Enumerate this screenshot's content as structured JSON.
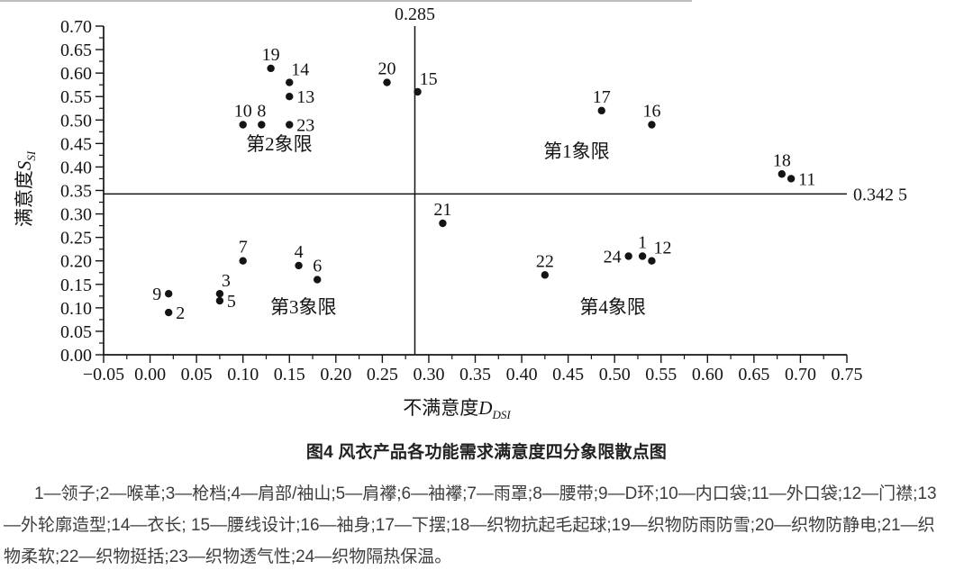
{
  "figure": {
    "caption": "图4 风衣产品各功能需求满意度四分象限散点图",
    "legend_lines": [
      "1—领子;2—喉革;3—枪档;4—肩部/袖山;5—肩襻;6—袖襻;7—雨罩;8—腰带;9—D环;10—内口袋;11—外口袋;12—门襟;13",
      "—外轮廓造型;14—衣长; 15—腰线设计;16—袖身;17—下摆;18—织物抗起毛起球;19—织物防雨防雪;20—织物防静电;21—织",
      "物柔软;22—织物挺括;23—织物透气性;24—织物隔热保温。"
    ]
  },
  "chart_data": {
    "type": "scatter",
    "title": "图4 风衣产品各功能需求满意度四分象限散点图",
    "xlabel": {
      "text": "不满意度",
      "var": "D",
      "sub": "DSI"
    },
    "ylabel": {
      "text": "满意度",
      "var": "S",
      "sub": "SI"
    },
    "xlim": [
      -0.05,
      0.75
    ],
    "ylim": [
      0.0,
      0.7
    ],
    "x_major_step": 0.05,
    "x_minor_step": 0.025,
    "y_major_step": 0.05,
    "y_minor_step": 0.025,
    "x_tick_labels": [
      "−0.05",
      "0.00",
      "0.05",
      "0.10",
      "0.15",
      "0.20",
      "0.25",
      "0.30",
      "0.35",
      "0.40",
      "0.45",
      "0.50",
      "0.55",
      "0.60",
      "0.65",
      "0.70",
      "0.75"
    ],
    "y_tick_labels": [
      "0.00",
      "0.05",
      "0.10",
      "0.15",
      "0.20",
      "0.25",
      "0.30",
      "0.35",
      "0.40",
      "0.45",
      "0.50",
      "0.55",
      "0.60",
      "0.65",
      "0.70"
    ],
    "grid": false,
    "thresholds": {
      "vertical": {
        "value": 0.285,
        "label": "0.285"
      },
      "horizontal": {
        "value": 0.3425,
        "label": "0.342 5"
      }
    },
    "quadrants": [
      {
        "label": "第1象限",
        "x": 0.459,
        "y": 0.433
      },
      {
        "label": "第2象限",
        "x": 0.139,
        "y": 0.449
      },
      {
        "label": "第3象限",
        "x": 0.165,
        "y": 0.102
      },
      {
        "label": "第4象限",
        "x": 0.498,
        "y": 0.102
      }
    ],
    "points": [
      {
        "id": "1",
        "x": 0.53,
        "y": 0.21,
        "label_pos": "above"
      },
      {
        "id": "2",
        "x": 0.02,
        "y": 0.09,
        "label_pos": "right"
      },
      {
        "id": "3",
        "x": 0.075,
        "y": 0.13,
        "label_pos": "above-right"
      },
      {
        "id": "4",
        "x": 0.16,
        "y": 0.19,
        "label_pos": "above"
      },
      {
        "id": "5",
        "x": 0.075,
        "y": 0.115,
        "label_pos": "right"
      },
      {
        "id": "6",
        "x": 0.18,
        "y": 0.16,
        "label_pos": "above"
      },
      {
        "id": "7",
        "x": 0.1,
        "y": 0.2,
        "label_pos": "above"
      },
      {
        "id": "8",
        "x": 0.12,
        "y": 0.49,
        "label_pos": "above"
      },
      {
        "id": "9",
        "x": 0.02,
        "y": 0.13,
        "label_pos": "left"
      },
      {
        "id": "10",
        "x": 0.1,
        "y": 0.49,
        "label_pos": "above"
      },
      {
        "id": "11",
        "x": 0.69,
        "y": 0.375,
        "label_pos": "right"
      },
      {
        "id": "12",
        "x": 0.54,
        "y": 0.2,
        "label_pos": "above-right"
      },
      {
        "id": "13",
        "x": 0.15,
        "y": 0.55,
        "label_pos": "right"
      },
      {
        "id": "14",
        "x": 0.15,
        "y": 0.58,
        "label_pos": "above-right"
      },
      {
        "id": "15",
        "x": 0.288,
        "y": 0.56,
        "label_pos": "above-right"
      },
      {
        "id": "16",
        "x": 0.54,
        "y": 0.49,
        "label_pos": "above"
      },
      {
        "id": "17",
        "x": 0.486,
        "y": 0.52,
        "label_pos": "above"
      },
      {
        "id": "18",
        "x": 0.68,
        "y": 0.385,
        "label_pos": "above"
      },
      {
        "id": "19",
        "x": 0.13,
        "y": 0.61,
        "label_pos": "above"
      },
      {
        "id": "20",
        "x": 0.255,
        "y": 0.58,
        "label_pos": "above"
      },
      {
        "id": "21",
        "x": 0.315,
        "y": 0.28,
        "label_pos": "above"
      },
      {
        "id": "22",
        "x": 0.425,
        "y": 0.17,
        "label_pos": "above"
      },
      {
        "id": "23",
        "x": 0.15,
        "y": 0.49,
        "label_pos": "right"
      },
      {
        "id": "24",
        "x": 0.515,
        "y": 0.21,
        "label_pos": "left"
      }
    ],
    "colors": {
      "ink": "#141414",
      "caption_text": "#222222",
      "legend_text": "#3d3d3d"
    }
  }
}
